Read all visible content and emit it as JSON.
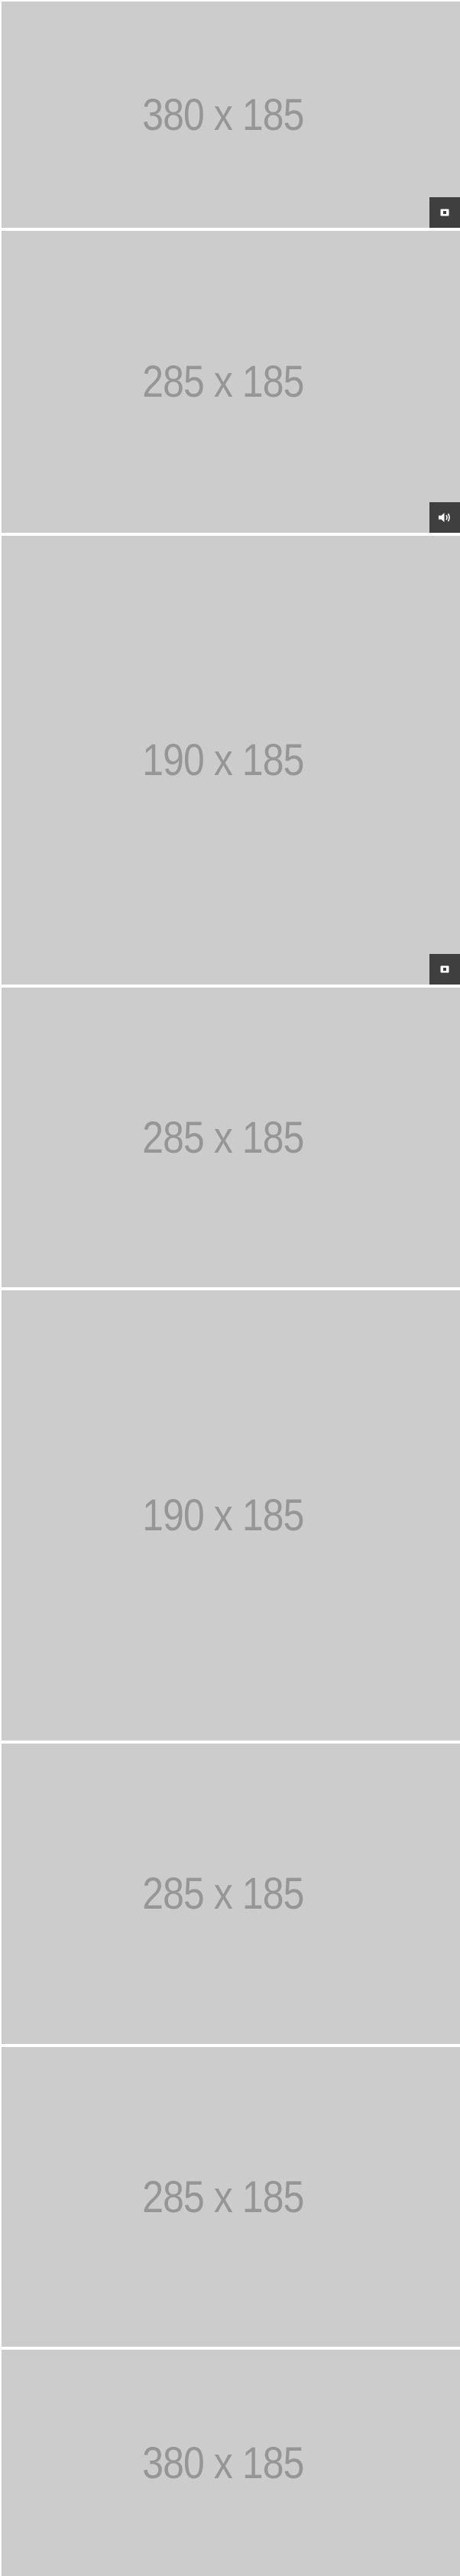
{
  "tiles": [
    {
      "label": "380 x 185",
      "badge": "video-icon"
    },
    {
      "label": "285 x 185",
      "badge": "audio-icon"
    },
    {
      "label": "190 x 185",
      "badge": "video-icon"
    },
    {
      "label": "285 x 185",
      "badge": null
    },
    {
      "label": "190 x 185",
      "badge": null
    },
    {
      "label": "285 x 185",
      "badge": null
    },
    {
      "label": "285 x 185",
      "badge": null
    },
    {
      "label": "380 x 185",
      "badge": null
    }
  ],
  "colors": {
    "placeholder_bg": "#cccccc",
    "placeholder_text": "#969696",
    "badge_bg": "#3f3f3f",
    "badge_icon": "#ffffff"
  }
}
